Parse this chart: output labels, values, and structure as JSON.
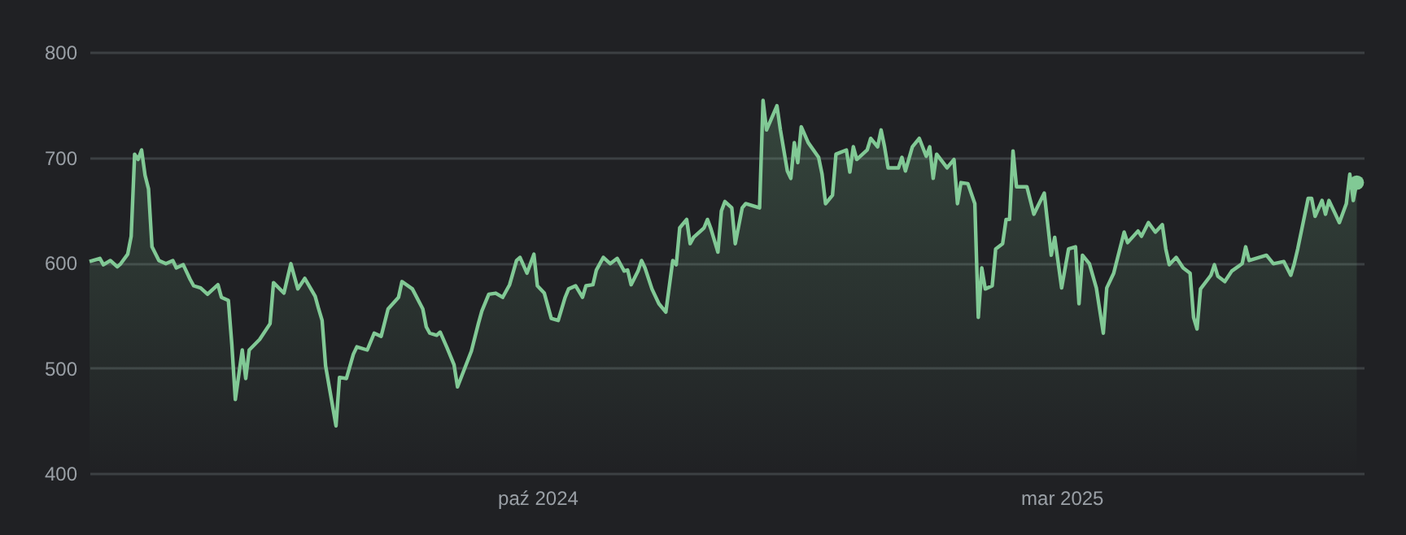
{
  "chart_data": {
    "type": "area",
    "xlim": [
      "2024-05-25",
      "2025-05-27"
    ],
    "ylim": [
      400,
      800
    ],
    "yticks": [
      400,
      500,
      600,
      700,
      800
    ],
    "xticks": [
      {
        "value": "2024-10-01",
        "label": "paź 2024"
      },
      {
        "value": "2025-03-01",
        "label": "mar 2025"
      }
    ],
    "grid": "y",
    "line_style": "solid",
    "series": [
      {
        "color": "#81c995",
        "marker": "none",
        "x": [
          "2024-05-25",
          "2024-05-28",
          "2024-05-29",
          "2024-05-31",
          "2024-06-02",
          "2024-06-03",
          "2024-06-05",
          "2024-06-06",
          "2024-06-07",
          "2024-06-08",
          "2024-06-09",
          "2024-06-10",
          "2024-06-11",
          "2024-06-12",
          "2024-06-14",
          "2024-06-16",
          "2024-06-18",
          "2024-06-19",
          "2024-06-21",
          "2024-06-23",
          "2024-06-24",
          "2024-06-26",
          "2024-06-28",
          "2024-07-01",
          "2024-07-02",
          "2024-07-04",
          "2024-07-05",
          "2024-07-06",
          "2024-07-08",
          "2024-07-09",
          "2024-07-10",
          "2024-07-13",
          "2024-07-16",
          "2024-07-17",
          "2024-07-20",
          "2024-07-22",
          "2024-07-24",
          "2024-07-26",
          "2024-07-29",
          "2024-07-30",
          "2024-07-31",
          "2024-08-01",
          "2024-08-04",
          "2024-08-05",
          "2024-08-07",
          "2024-08-09",
          "2024-08-10",
          "2024-08-13",
          "2024-08-15",
          "2024-08-17",
          "2024-08-19",
          "2024-08-22",
          "2024-08-23",
          "2024-08-26",
          "2024-08-29",
          "2024-08-30",
          "2024-08-31",
          "2024-09-02",
          "2024-09-03",
          "2024-09-05",
          "2024-09-07",
          "2024-09-08",
          "2024-09-10",
          "2024-09-12",
          "2024-09-14",
          "2024-09-15",
          "2024-09-17",
          "2024-09-19",
          "2024-09-21",
          "2024-09-23",
          "2024-09-25",
          "2024-09-26",
          "2024-09-28",
          "2024-09-30",
          "2024-10-01",
          "2024-10-03",
          "2024-10-05",
          "2024-10-07",
          "2024-10-09",
          "2024-10-10",
          "2024-10-12",
          "2024-10-14",
          "2024-10-15",
          "2024-10-17",
          "2024-10-18",
          "2024-10-20",
          "2024-10-22",
          "2024-10-24",
          "2024-10-26",
          "2024-10-27",
          "2024-10-28",
          "2024-10-30",
          "2024-10-31",
          "2024-11-01",
          "2024-11-03",
          "2024-11-05",
          "2024-11-07",
          "2024-11-09",
          "2024-11-10",
          "2024-11-11",
          "2024-11-13",
          "2024-11-14",
          "2024-11-15",
          "2024-11-18",
          "2024-11-19",
          "2024-11-20",
          "2024-11-22",
          "2024-11-23",
          "2024-11-24",
          "2024-11-26",
          "2024-11-27",
          "2024-11-29",
          "2024-11-30",
          "2024-12-04",
          "2024-12-05",
          "2024-12-06",
          "2024-12-09",
          "2024-12-10",
          "2024-12-12",
          "2024-12-13",
          "2024-12-14",
          "2024-12-15",
          "2024-12-16",
          "2024-12-18",
          "2024-12-21",
          "2024-12-22",
          "2024-12-23",
          "2024-12-25",
          "2024-12-26",
          "2024-12-29",
          "2024-12-30",
          "2024-12-31",
          "2025-01-01",
          "2025-01-04",
          "2025-01-05",
          "2025-01-07",
          "2025-01-08",
          "2025-01-09",
          "2025-01-10",
          "2025-01-13",
          "2025-01-14",
          "2025-01-15",
          "2025-01-17",
          "2025-01-19",
          "2025-01-21",
          "2025-01-22",
          "2025-01-23",
          "2025-01-24",
          "2025-01-27",
          "2025-01-29",
          "2025-01-30",
          "2025-01-31",
          "2025-02-02",
          "2025-02-04",
          "2025-02-05",
          "2025-02-06",
          "2025-02-07",
          "2025-02-09",
          "2025-02-10",
          "2025-02-12",
          "2025-02-13",
          "2025-02-14",
          "2025-02-15",
          "2025-02-16",
          "2025-02-19",
          "2025-02-21",
          "2025-02-24",
          "2025-02-26",
          "2025-02-27",
          "2025-03-01",
          "2025-03-03",
          "2025-03-05",
          "2025-03-06",
          "2025-03-07",
          "2025-03-09",
          "2025-03-11",
          "2025-03-13",
          "2025-03-14",
          "2025-03-16",
          "2025-03-19",
          "2025-03-20",
          "2025-03-23",
          "2025-03-24",
          "2025-03-26",
          "2025-03-28",
          "2025-03-30",
          "2025-03-31",
          "2025-04-01",
          "2025-04-03",
          "2025-04-05",
          "2025-04-07",
          "2025-04-08",
          "2025-04-09",
          "2025-04-10",
          "2025-04-13",
          "2025-04-14",
          "2025-04-15",
          "2025-04-17",
          "2025-04-19",
          "2025-04-22",
          "2025-04-23",
          "2025-04-24",
          "2025-04-29",
          "2025-05-01",
          "2025-05-04",
          "2025-05-06",
          "2025-05-07",
          "2025-05-08",
          "2025-05-11",
          "2025-05-12",
          "2025-05-13",
          "2025-05-15",
          "2025-05-16",
          "2025-05-17",
          "2025-05-20",
          "2025-05-22",
          "2025-05-23",
          "2025-05-24",
          "2025-05-25"
        ],
        "values": [
          601,
          604,
          598,
          602,
          596,
          599,
          608,
          625,
          703,
          698,
          707,
          683,
          670,
          615,
          602,
          599,
          602,
          595,
          598,
          584,
          578,
          576,
          570,
          579,
          567,
          564,
          522,
          470,
          517,
          490,
          517,
          527,
          542,
          581,
          571,
          599,
          575,
          585,
          568,
          556,
          545,
          502,
          445,
          491,
          490,
          513,
          520,
          517,
          533,
          530,
          556,
          567,
          582,
          575,
          556,
          539,
          533,
          531,
          534,
          519,
          503,
          482,
          499,
          516,
          542,
          554,
          570,
          571,
          567,
          579,
          602,
          605,
          590,
          608,
          578,
          571,
          547,
          545,
          567,
          575,
          578,
          567,
          578,
          579,
          593,
          605,
          599,
          604,
          592,
          593,
          579,
          592,
          602,
          595,
          575,
          561,
          553,
          602,
          598,
          633,
          641,
          618,
          624,
          633,
          641,
          632,
          610,
          649,
          658,
          652,
          618,
          652,
          656,
          652,
          754,
          726,
          749,
          726,
          687,
          680,
          714,
          695,
          729,
          714,
          700,
          684,
          656,
          664,
          703,
          707,
          686,
          710,
          698,
          707,
          718,
          710,
          726,
          710,
          690,
          690,
          700,
          687,
          710,
          718,
          701,
          710,
          680,
          703,
          690,
          698,
          656,
          676,
          675,
          656,
          548,
          595,
          575,
          578,
          613,
          618,
          641,
          641,
          706,
          672,
          672,
          646,
          666,
          607,
          624,
          576,
          613,
          615,
          561,
          607,
          599,
          576,
          533,
          576,
          590,
          629,
          619,
          630,
          625,
          638,
          629,
          636,
          613,
          598,
          605,
          595,
          590,
          548,
          537,
          575,
          588,
          598,
          587,
          582,
          592,
          599,
          615,
          602,
          607,
          599,
          601,
          588,
          599,
          613,
          661,
          661,
          644,
          659,
          646,
          659,
          638,
          656,
          684,
          659,
          676
        ]
      },
      {
        "type": "scatter",
        "color": "#81c995",
        "marker": "circle",
        "x": [
          "2025-05-25"
        ],
        "values": [
          676
        ]
      }
    ]
  }
}
